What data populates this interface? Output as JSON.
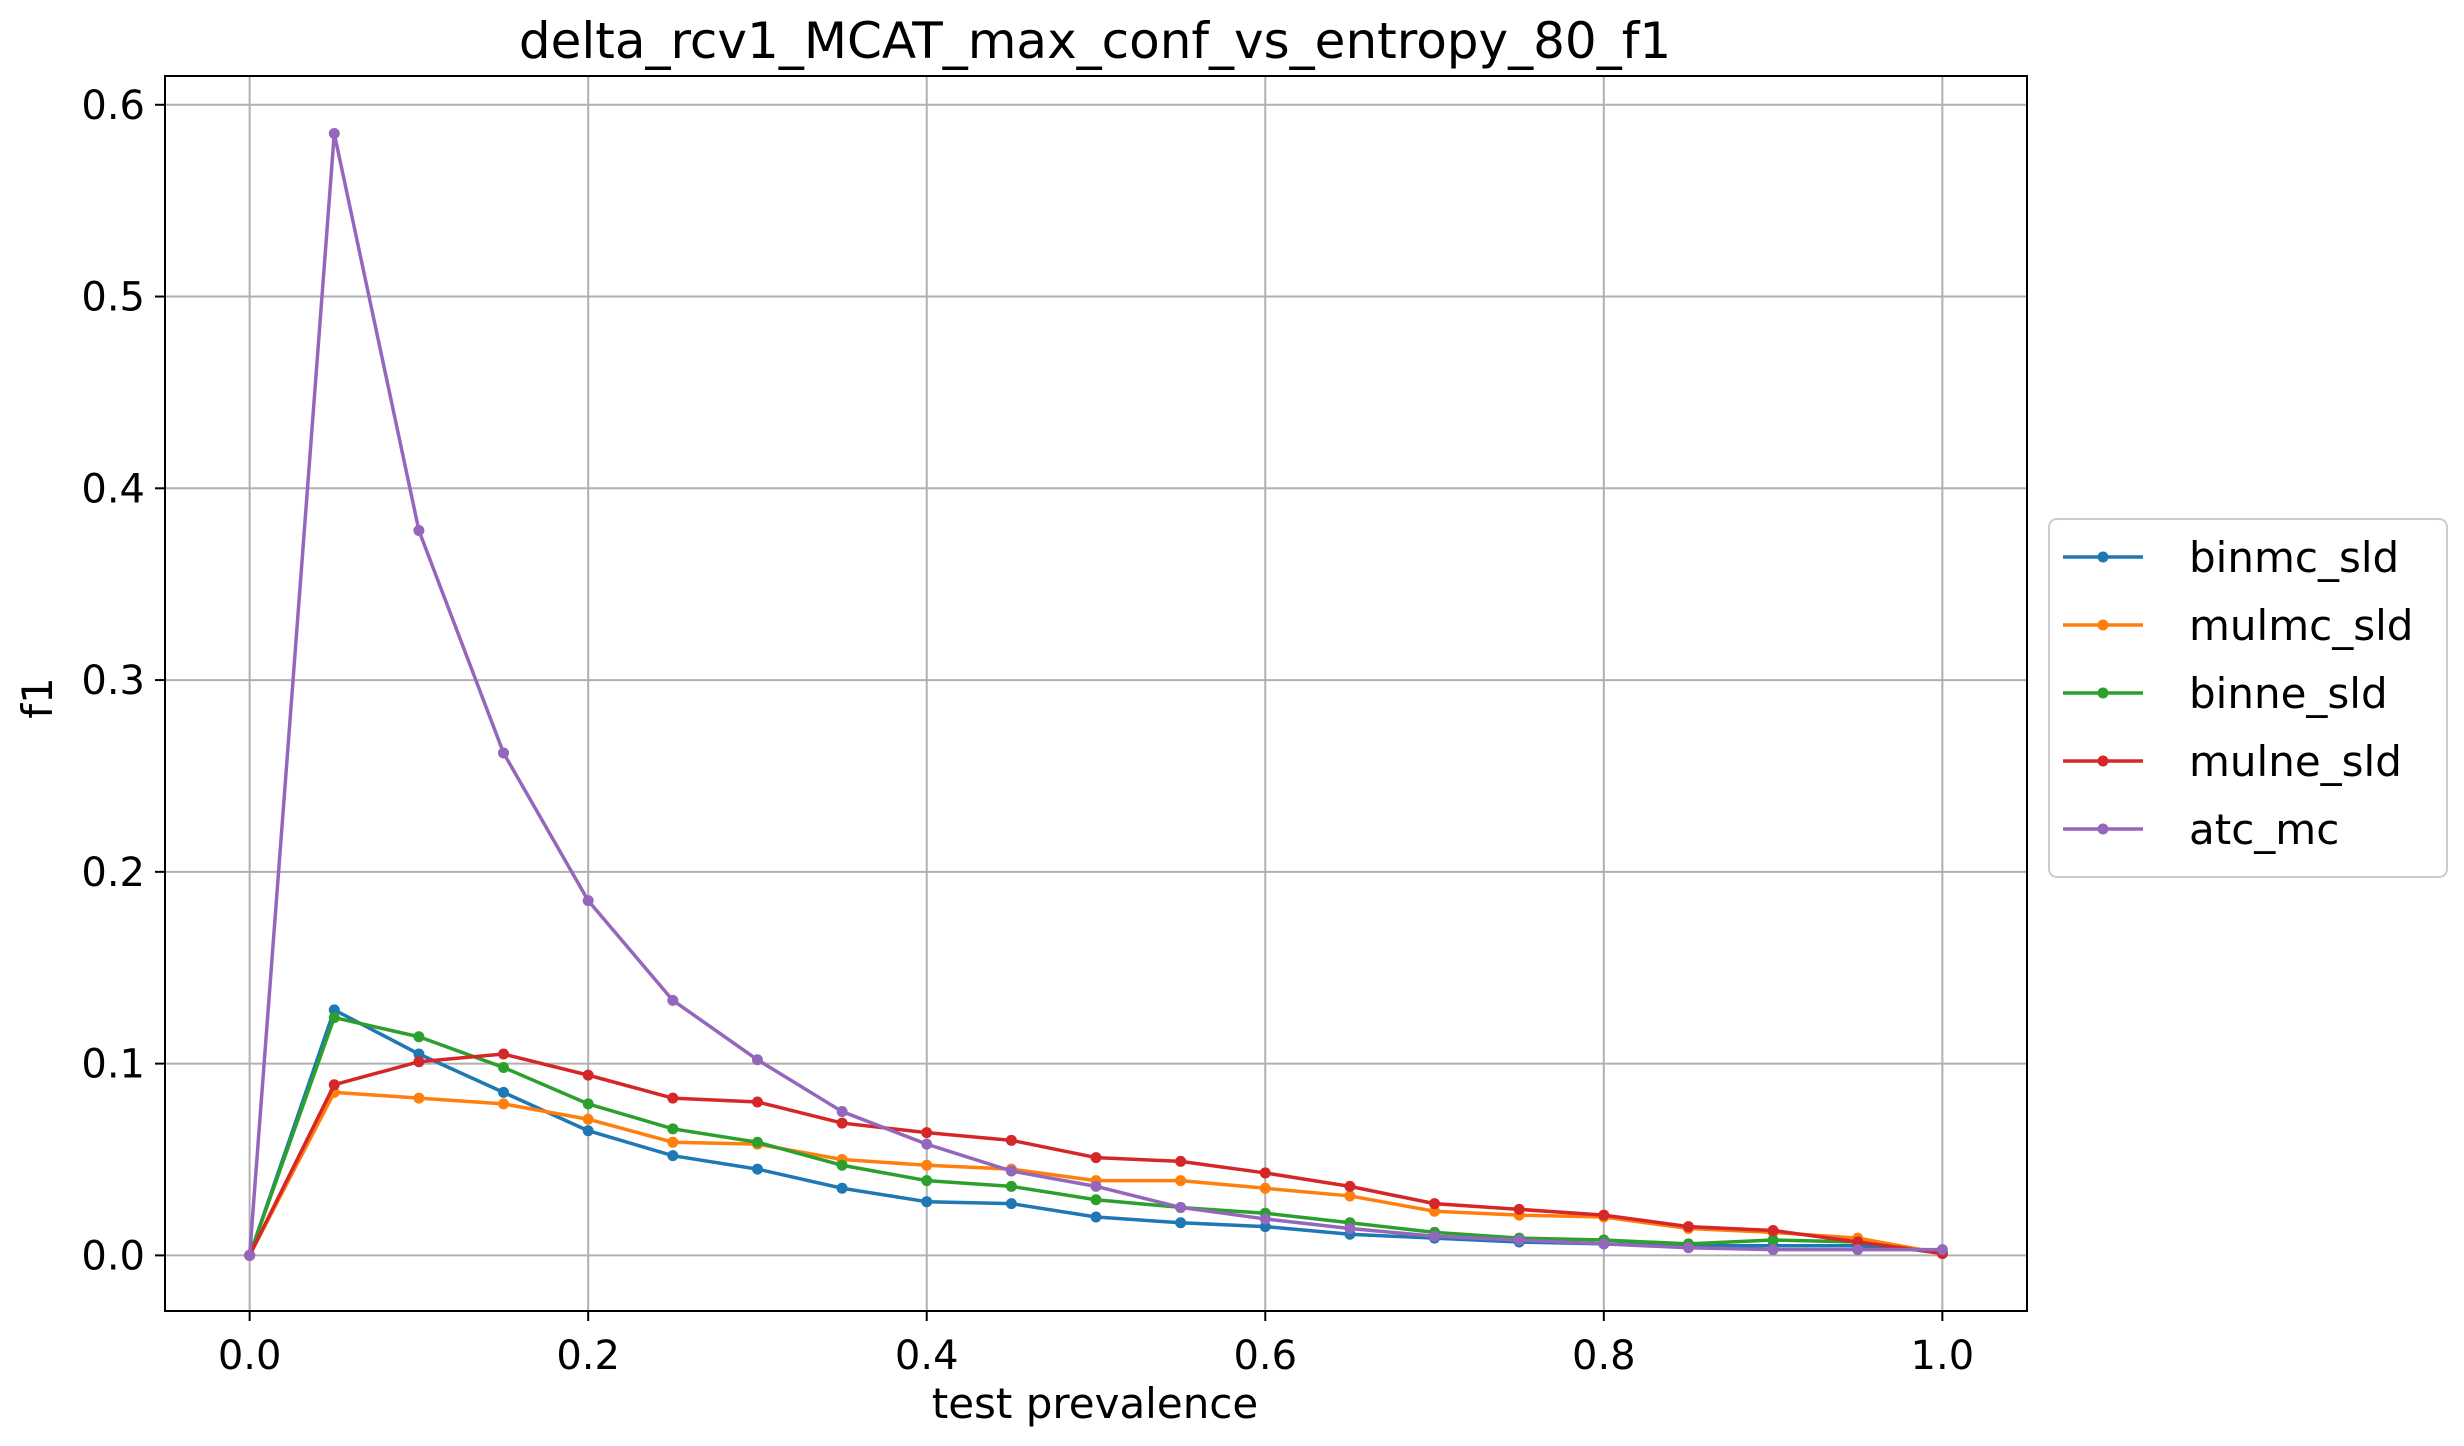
{
  "chart_data": {
    "type": "line",
    "title": "delta_rcv1_MCAT_max_conf_vs_entropy_80_f1",
    "xlabel": "test prevalence",
    "ylabel": "f1",
    "xlim": [
      -0.05,
      1.05
    ],
    "ylim": [
      -0.029,
      0.615
    ],
    "xticks": [
      "0.0",
      "0.2",
      "0.4",
      "0.6",
      "0.8",
      "1.0"
    ],
    "yticks": [
      "0.0",
      "0.1",
      "0.2",
      "0.3",
      "0.4",
      "0.5",
      "0.6"
    ],
    "grid": true,
    "legend_position": "center-right-outside",
    "x": [
      0.0,
      0.05,
      0.1,
      0.15,
      0.2,
      0.25,
      0.3,
      0.35,
      0.4,
      0.45,
      0.5,
      0.55,
      0.6,
      0.65,
      0.7,
      0.75,
      0.8,
      0.85,
      0.9,
      0.95,
      1.0
    ],
    "series": [
      {
        "name": "binmc_sld",
        "color": "#1f77b4",
        "values": [
          0.0,
          0.128,
          0.105,
          0.085,
          0.065,
          0.052,
          0.045,
          0.035,
          0.028,
          0.027,
          0.02,
          0.017,
          0.015,
          0.011,
          0.009,
          0.007,
          0.006,
          0.005,
          0.005,
          0.005,
          0.002
        ]
      },
      {
        "name": "mulmc_sld",
        "color": "#ff7f0e",
        "values": [
          0.0,
          0.085,
          0.082,
          0.079,
          0.071,
          0.059,
          0.058,
          0.05,
          0.047,
          0.045,
          0.039,
          0.039,
          0.035,
          0.031,
          0.023,
          0.021,
          0.02,
          0.014,
          0.012,
          0.009,
          0.001
        ]
      },
      {
        "name": "binne_sld",
        "color": "#2ca02c",
        "values": [
          0.0,
          0.124,
          0.114,
          0.098,
          0.079,
          0.066,
          0.059,
          0.047,
          0.039,
          0.036,
          0.029,
          0.025,
          0.022,
          0.017,
          0.012,
          0.009,
          0.008,
          0.006,
          0.008,
          0.007,
          0.001
        ]
      },
      {
        "name": "mulne_sld",
        "color": "#d62728",
        "values": [
          0.0,
          0.089,
          0.101,
          0.105,
          0.094,
          0.082,
          0.08,
          0.069,
          0.064,
          0.06,
          0.051,
          0.049,
          0.043,
          0.036,
          0.027,
          0.024,
          0.021,
          0.015,
          0.013,
          0.007,
          0.001
        ]
      },
      {
        "name": "atc_mc",
        "color": "#9467bd",
        "values": [
          0.0,
          0.585,
          0.378,
          0.262,
          0.185,
          0.133,
          0.102,
          0.075,
          0.058,
          0.044,
          0.036,
          0.025,
          0.019,
          0.014,
          0.01,
          0.008,
          0.006,
          0.004,
          0.003,
          0.003,
          0.003
        ]
      }
    ]
  }
}
